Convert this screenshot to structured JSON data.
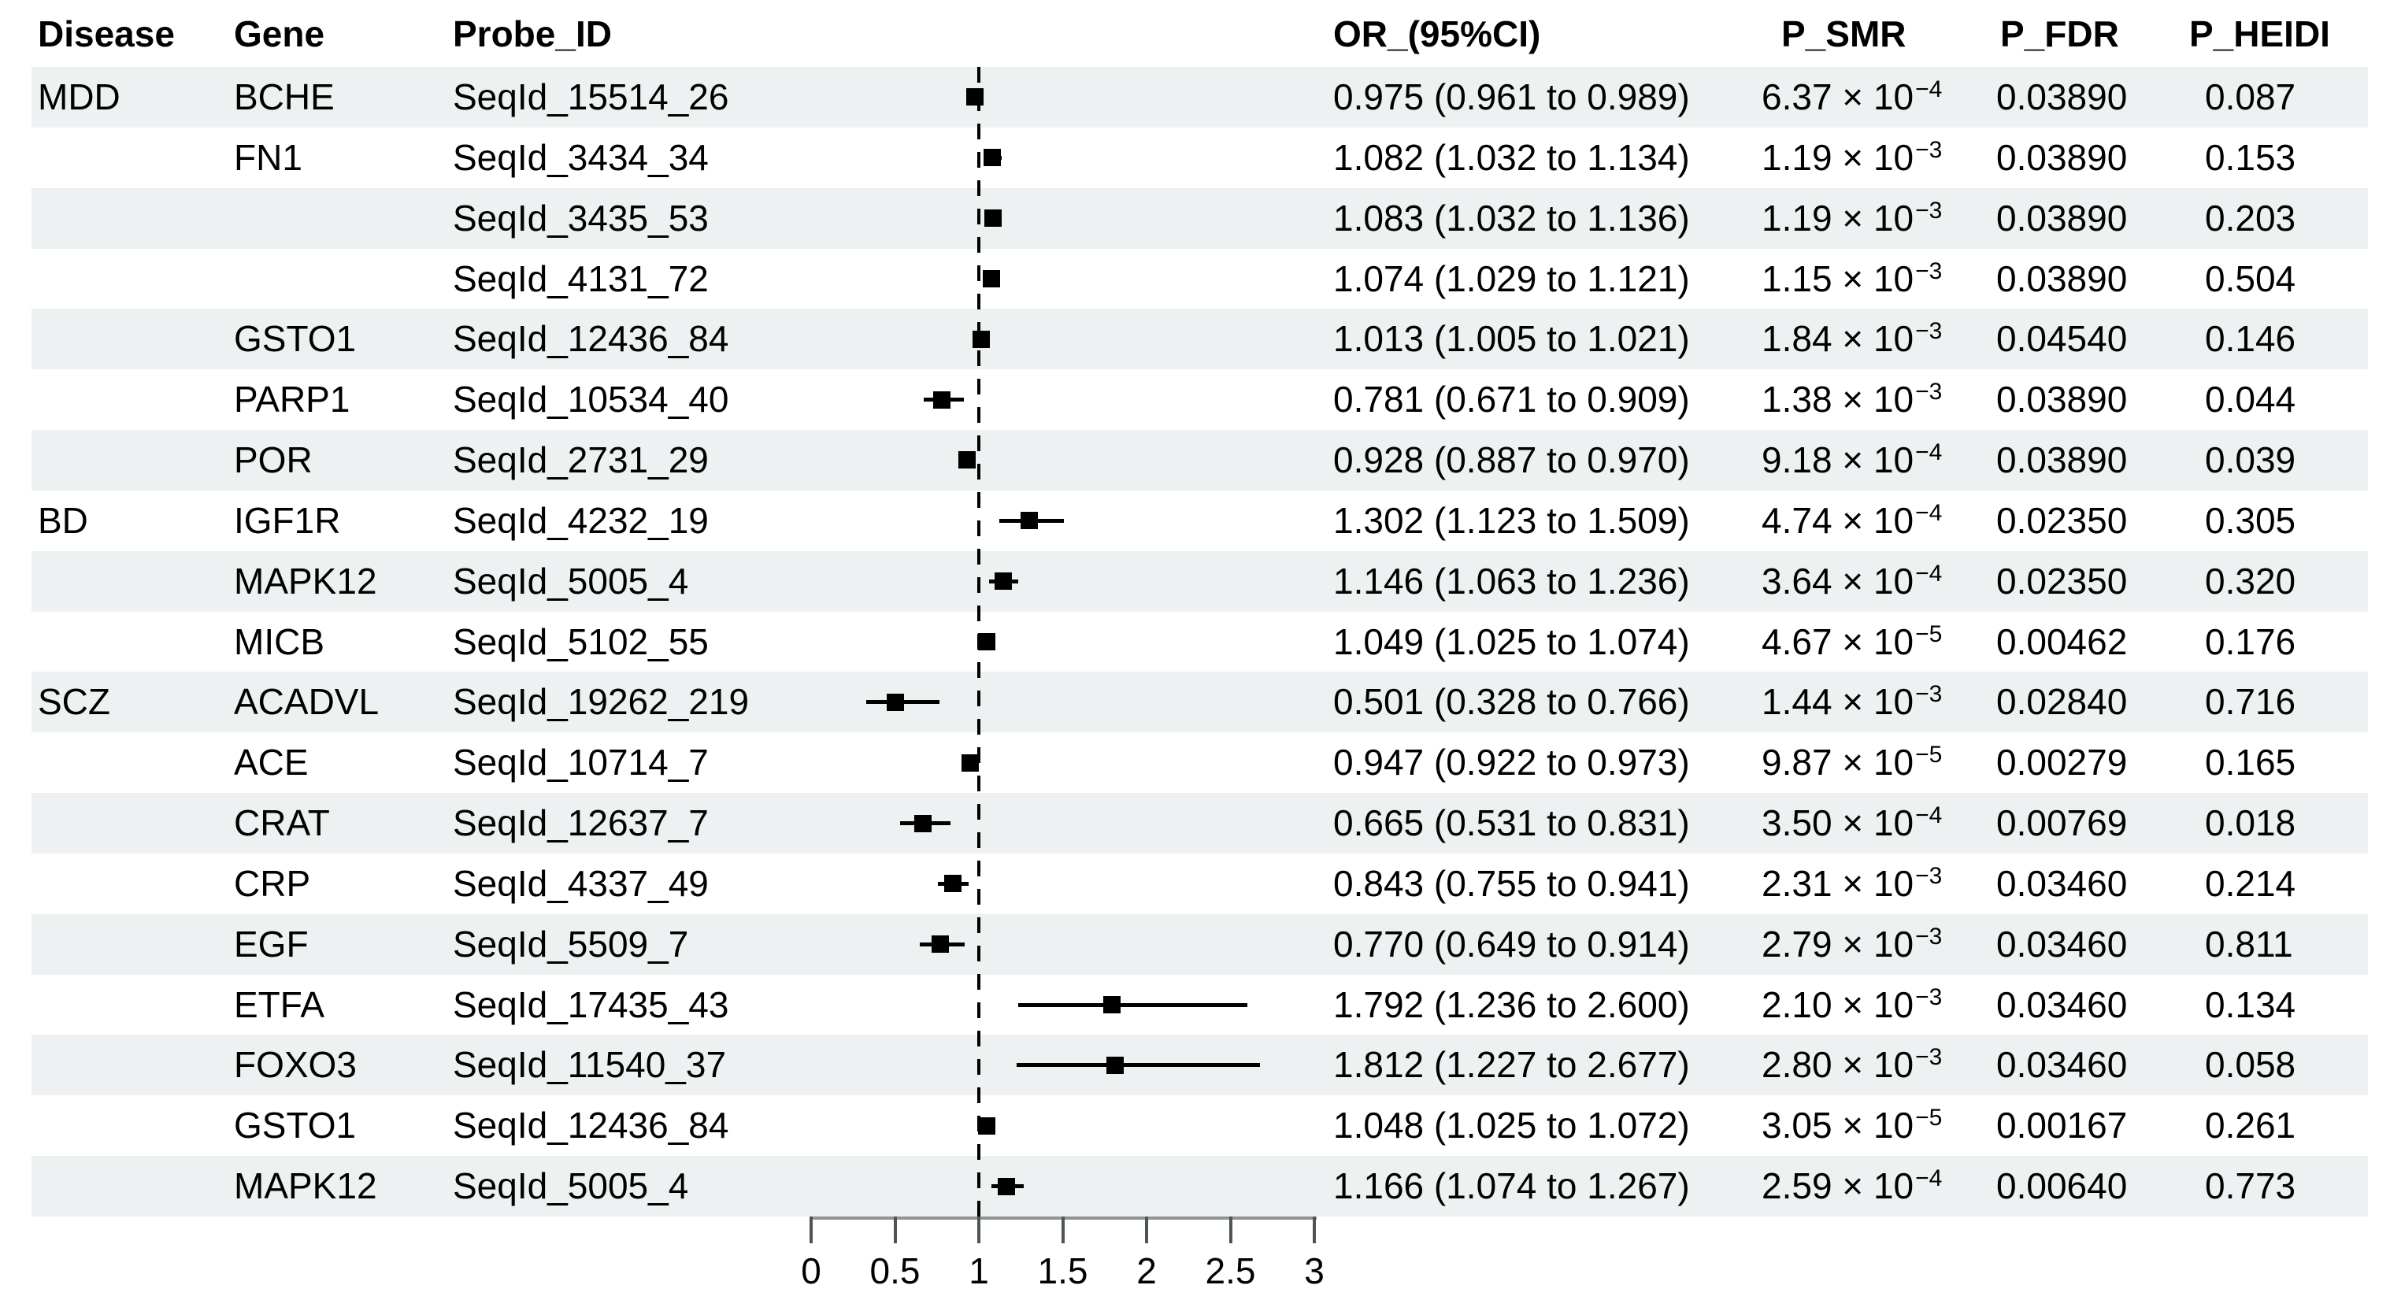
{
  "colors": {
    "row_shade": "#edf1f1",
    "marker": "#000000",
    "reference_line": "#000000",
    "axis_line": "#8f9494",
    "tick": "#4f5454",
    "text": "#000000"
  },
  "table": {
    "headers": {
      "disease": "Disease",
      "gene": "Gene",
      "probe": "Probe_ID",
      "or_ci": "OR_(95%CI)",
      "p_smr": "P_SMR",
      "p_fdr": "P_FDR",
      "p_heidi": "P_HEIDI"
    },
    "rows": [
      {
        "disease": "MDD",
        "gene": "BCHE",
        "probe": "SeqId_15514_26",
        "or_ci": "0.975 (0.961 to 0.989)",
        "p_smr_base": "6.37 × 10",
        "p_smr_exp": "−4",
        "p_fdr": "0.03890",
        "p_heidi": "0.087",
        "or": 0.975,
        "lo": 0.961,
        "hi": 0.989,
        "shaded": true
      },
      {
        "disease": "",
        "gene": "FN1",
        "probe": "SeqId_3434_34",
        "or_ci": "1.082 (1.032 to 1.134)",
        "p_smr_base": "1.19 × 10",
        "p_smr_exp": "−3",
        "p_fdr": "0.03890",
        "p_heidi": "0.153",
        "or": 1.082,
        "lo": 1.032,
        "hi": 1.134,
        "shaded": false
      },
      {
        "disease": "",
        "gene": "",
        "probe": "SeqId_3435_53",
        "or_ci": "1.083 (1.032 to 1.136)",
        "p_smr_base": "1.19 × 10",
        "p_smr_exp": "−3",
        "p_fdr": "0.03890",
        "p_heidi": "0.203",
        "or": 1.083,
        "lo": 1.032,
        "hi": 1.136,
        "shaded": true
      },
      {
        "disease": "",
        "gene": "",
        "probe": "SeqId_4131_72",
        "or_ci": "1.074 (1.029 to 1.121)",
        "p_smr_base": "1.15 × 10",
        "p_smr_exp": "−3",
        "p_fdr": "0.03890",
        "p_heidi": "0.504",
        "or": 1.074,
        "lo": 1.029,
        "hi": 1.121,
        "shaded": false
      },
      {
        "disease": "",
        "gene": "GSTO1",
        "probe": "SeqId_12436_84",
        "or_ci": "1.013 (1.005 to 1.021)",
        "p_smr_base": "1.84 × 10",
        "p_smr_exp": "−3",
        "p_fdr": "0.04540",
        "p_heidi": "0.146",
        "or": 1.013,
        "lo": 1.005,
        "hi": 1.021,
        "shaded": true
      },
      {
        "disease": "",
        "gene": "PARP1",
        "probe": "SeqId_10534_40",
        "or_ci": "0.781 (0.671 to 0.909)",
        "p_smr_base": "1.38 × 10",
        "p_smr_exp": "−3",
        "p_fdr": "0.03890",
        "p_heidi": "0.044",
        "or": 0.781,
        "lo": 0.671,
        "hi": 0.909,
        "shaded": false
      },
      {
        "disease": "",
        "gene": "POR",
        "probe": "SeqId_2731_29",
        "or_ci": "0.928 (0.887 to 0.970)",
        "p_smr_base": "9.18 × 10",
        "p_smr_exp": "−4",
        "p_fdr": "0.03890",
        "p_heidi": "0.039",
        "or": 0.928,
        "lo": 0.887,
        "hi": 0.97,
        "shaded": true
      },
      {
        "disease": "BD",
        "gene": "IGF1R",
        "probe": "SeqId_4232_19",
        "or_ci": "1.302 (1.123 to 1.509)",
        "p_smr_base": "4.74 × 10",
        "p_smr_exp": "−4",
        "p_fdr": "0.02350",
        "p_heidi": "0.305",
        "or": 1.302,
        "lo": 1.123,
        "hi": 1.509,
        "shaded": false
      },
      {
        "disease": "",
        "gene": "MAPK12",
        "probe": "SeqId_5005_4",
        "or_ci": "1.146 (1.063 to 1.236)",
        "p_smr_base": "3.64 × 10",
        "p_smr_exp": "−4",
        "p_fdr": "0.02350",
        "p_heidi": "0.320",
        "or": 1.146,
        "lo": 1.063,
        "hi": 1.236,
        "shaded": true
      },
      {
        "disease": "",
        "gene": "MICB",
        "probe": "SeqId_5102_55",
        "or_ci": "1.049 (1.025 to 1.074)",
        "p_smr_base": "4.67 × 10",
        "p_smr_exp": "−5",
        "p_fdr": "0.00462",
        "p_heidi": "0.176",
        "or": 1.049,
        "lo": 1.025,
        "hi": 1.074,
        "shaded": false
      },
      {
        "disease": "SCZ",
        "gene": "ACADVL",
        "probe": "SeqId_19262_219",
        "or_ci": "0.501 (0.328 to 0.766)",
        "p_smr_base": "1.44 × 10",
        "p_smr_exp": "−3",
        "p_fdr": "0.02840",
        "p_heidi": "0.716",
        "or": 0.501,
        "lo": 0.328,
        "hi": 0.766,
        "shaded": true
      },
      {
        "disease": "",
        "gene": "ACE",
        "probe": "SeqId_10714_7",
        "or_ci": "0.947 (0.922 to 0.973)",
        "p_smr_base": "9.87 × 10",
        "p_smr_exp": "−5",
        "p_fdr": "0.00279",
        "p_heidi": "0.165",
        "or": 0.947,
        "lo": 0.922,
        "hi": 0.973,
        "shaded": false
      },
      {
        "disease": "",
        "gene": "CRAT",
        "probe": "SeqId_12637_7",
        "or_ci": "0.665 (0.531 to 0.831)",
        "p_smr_base": "3.50 × 10",
        "p_smr_exp": "−4",
        "p_fdr": "0.00769",
        "p_heidi": "0.018",
        "or": 0.665,
        "lo": 0.531,
        "hi": 0.831,
        "shaded": true
      },
      {
        "disease": "",
        "gene": "CRP",
        "probe": "SeqId_4337_49",
        "or_ci": "0.843 (0.755 to 0.941)",
        "p_smr_base": "2.31 × 10",
        "p_smr_exp": "−3",
        "p_fdr": "0.03460",
        "p_heidi": "0.214",
        "or": 0.843,
        "lo": 0.755,
        "hi": 0.941,
        "shaded": false
      },
      {
        "disease": "",
        "gene": "EGF",
        "probe": "SeqId_5509_7",
        "or_ci": "0.770 (0.649 to 0.914)",
        "p_smr_base": "2.79 × 10",
        "p_smr_exp": "−3",
        "p_fdr": "0.03460",
        "p_heidi": "0.811",
        "or": 0.77,
        "lo": 0.649,
        "hi": 0.914,
        "shaded": true
      },
      {
        "disease": "",
        "gene": "ETFA",
        "probe": "SeqId_17435_43",
        "or_ci": "1.792 (1.236 to 2.600)",
        "p_smr_base": "2.10 × 10",
        "p_smr_exp": "−3",
        "p_fdr": "0.03460",
        "p_heidi": "0.134",
        "or": 1.792,
        "lo": 1.236,
        "hi": 2.6,
        "shaded": false
      },
      {
        "disease": "",
        "gene": "FOXO3",
        "probe": "SeqId_11540_37",
        "or_ci": "1.812 (1.227 to 2.677)",
        "p_smr_base": "2.80 × 10",
        "p_smr_exp": "−3",
        "p_fdr": "0.03460",
        "p_heidi": "0.058",
        "or": 1.812,
        "lo": 1.227,
        "hi": 2.677,
        "shaded": true
      },
      {
        "disease": "",
        "gene": "GSTO1",
        "probe": "SeqId_12436_84",
        "or_ci": "1.048 (1.025 to 1.072)",
        "p_smr_base": "3.05 × 10",
        "p_smr_exp": "−5",
        "p_fdr": "0.00167",
        "p_heidi": "0.261",
        "or": 1.048,
        "lo": 1.025,
        "hi": 1.072,
        "shaded": false
      },
      {
        "disease": "",
        "gene": "MAPK12",
        "probe": "SeqId_5005_4",
        "or_ci": "1.166 (1.074 to 1.267)",
        "p_smr_base": "2.59 × 10",
        "p_smr_exp": "−4",
        "p_fdr": "0.00640",
        "p_heidi": "0.773",
        "or": 1.166,
        "lo": 1.074,
        "hi": 1.267,
        "shaded": true
      }
    ]
  },
  "axis": {
    "tick_labels": [
      "0",
      "0.5",
      "1",
      "1.5",
      "2",
      "2.5",
      "3"
    ],
    "tick_values": [
      0,
      0.5,
      1,
      1.5,
      2,
      2.5,
      3
    ],
    "min": 0,
    "max": 3,
    "reference_value": 1
  },
  "chart_data": {
    "type": "scatter",
    "subtype": "forest-plot",
    "title": "",
    "xlabel": "",
    "ylabel": "",
    "xlim": [
      0,
      3
    ],
    "x_ticks": [
      0,
      0.5,
      1,
      1.5,
      2,
      2.5,
      3
    ],
    "reference_line": 1,
    "grid": false,
    "legend": "none",
    "points": [
      {
        "disease": "MDD",
        "gene": "BCHE",
        "probe": "SeqId_15514_26",
        "or": 0.975,
        "ci_low": 0.961,
        "ci_high": 0.989,
        "p_smr": "6.37e-4",
        "p_fdr": 0.0389,
        "p_heidi": 0.087
      },
      {
        "disease": "MDD",
        "gene": "FN1",
        "probe": "SeqId_3434_34",
        "or": 1.082,
        "ci_low": 1.032,
        "ci_high": 1.134,
        "p_smr": "1.19e-3",
        "p_fdr": 0.0389,
        "p_heidi": 0.153
      },
      {
        "disease": "MDD",
        "gene": "FN1",
        "probe": "SeqId_3435_53",
        "or": 1.083,
        "ci_low": 1.032,
        "ci_high": 1.136,
        "p_smr": "1.19e-3",
        "p_fdr": 0.0389,
        "p_heidi": 0.203
      },
      {
        "disease": "MDD",
        "gene": "FN1",
        "probe": "SeqId_4131_72",
        "or": 1.074,
        "ci_low": 1.029,
        "ci_high": 1.121,
        "p_smr": "1.15e-3",
        "p_fdr": 0.0389,
        "p_heidi": 0.504
      },
      {
        "disease": "MDD",
        "gene": "GSTO1",
        "probe": "SeqId_12436_84",
        "or": 1.013,
        "ci_low": 1.005,
        "ci_high": 1.021,
        "p_smr": "1.84e-3",
        "p_fdr": 0.0454,
        "p_heidi": 0.146
      },
      {
        "disease": "MDD",
        "gene": "PARP1",
        "probe": "SeqId_10534_40",
        "or": 0.781,
        "ci_low": 0.671,
        "ci_high": 0.909,
        "p_smr": "1.38e-3",
        "p_fdr": 0.0389,
        "p_heidi": 0.044
      },
      {
        "disease": "MDD",
        "gene": "POR",
        "probe": "SeqId_2731_29",
        "or": 0.928,
        "ci_low": 0.887,
        "ci_high": 0.97,
        "p_smr": "9.18e-4",
        "p_fdr": 0.0389,
        "p_heidi": 0.039
      },
      {
        "disease": "BD",
        "gene": "IGF1R",
        "probe": "SeqId_4232_19",
        "or": 1.302,
        "ci_low": 1.123,
        "ci_high": 1.509,
        "p_smr": "4.74e-4",
        "p_fdr": 0.0235,
        "p_heidi": 0.305
      },
      {
        "disease": "BD",
        "gene": "MAPK12",
        "probe": "SeqId_5005_4",
        "or": 1.146,
        "ci_low": 1.063,
        "ci_high": 1.236,
        "p_smr": "3.64e-4",
        "p_fdr": 0.0235,
        "p_heidi": 0.32
      },
      {
        "disease": "BD",
        "gene": "MICB",
        "probe": "SeqId_5102_55",
        "or": 1.049,
        "ci_low": 1.025,
        "ci_high": 1.074,
        "p_smr": "4.67e-5",
        "p_fdr": 0.00462,
        "p_heidi": 0.176
      },
      {
        "disease": "SCZ",
        "gene": "ACADVL",
        "probe": "SeqId_19262_219",
        "or": 0.501,
        "ci_low": 0.328,
        "ci_high": 0.766,
        "p_smr": "1.44e-3",
        "p_fdr": 0.0284,
        "p_heidi": 0.716
      },
      {
        "disease": "SCZ",
        "gene": "ACE",
        "probe": "SeqId_10714_7",
        "or": 0.947,
        "ci_low": 0.922,
        "ci_high": 0.973,
        "p_smr": "9.87e-5",
        "p_fdr": 0.00279,
        "p_heidi": 0.165
      },
      {
        "disease": "SCZ",
        "gene": "CRAT",
        "probe": "SeqId_12637_7",
        "or": 0.665,
        "ci_low": 0.531,
        "ci_high": 0.831,
        "p_smr": "3.50e-4",
        "p_fdr": 0.00769,
        "p_heidi": 0.018
      },
      {
        "disease": "SCZ",
        "gene": "CRP",
        "probe": "SeqId_4337_49",
        "or": 0.843,
        "ci_low": 0.755,
        "ci_high": 0.941,
        "p_smr": "2.31e-3",
        "p_fdr": 0.0346,
        "p_heidi": 0.214
      },
      {
        "disease": "SCZ",
        "gene": "EGF",
        "probe": "SeqId_5509_7",
        "or": 0.77,
        "ci_low": 0.649,
        "ci_high": 0.914,
        "p_smr": "2.79e-3",
        "p_fdr": 0.0346,
        "p_heidi": 0.811
      },
      {
        "disease": "SCZ",
        "gene": "ETFA",
        "probe": "SeqId_17435_43",
        "or": 1.792,
        "ci_low": 1.236,
        "ci_high": 2.6,
        "p_smr": "2.10e-3",
        "p_fdr": 0.0346,
        "p_heidi": 0.134
      },
      {
        "disease": "SCZ",
        "gene": "FOXO3",
        "probe": "SeqId_11540_37",
        "or": 1.812,
        "ci_low": 1.227,
        "ci_high": 2.677,
        "p_smr": "2.80e-3",
        "p_fdr": 0.0346,
        "p_heidi": 0.058
      },
      {
        "disease": "SCZ",
        "gene": "GSTO1",
        "probe": "SeqId_12436_84",
        "or": 1.048,
        "ci_low": 1.025,
        "ci_high": 1.072,
        "p_smr": "3.05e-5",
        "p_fdr": 0.00167,
        "p_heidi": 0.261
      },
      {
        "disease": "SCZ",
        "gene": "MAPK12",
        "probe": "SeqId_5005_4",
        "or": 1.166,
        "ci_low": 1.074,
        "ci_high": 1.267,
        "p_smr": "2.59e-4",
        "p_fdr": 0.0064,
        "p_heidi": 0.773
      }
    ]
  }
}
